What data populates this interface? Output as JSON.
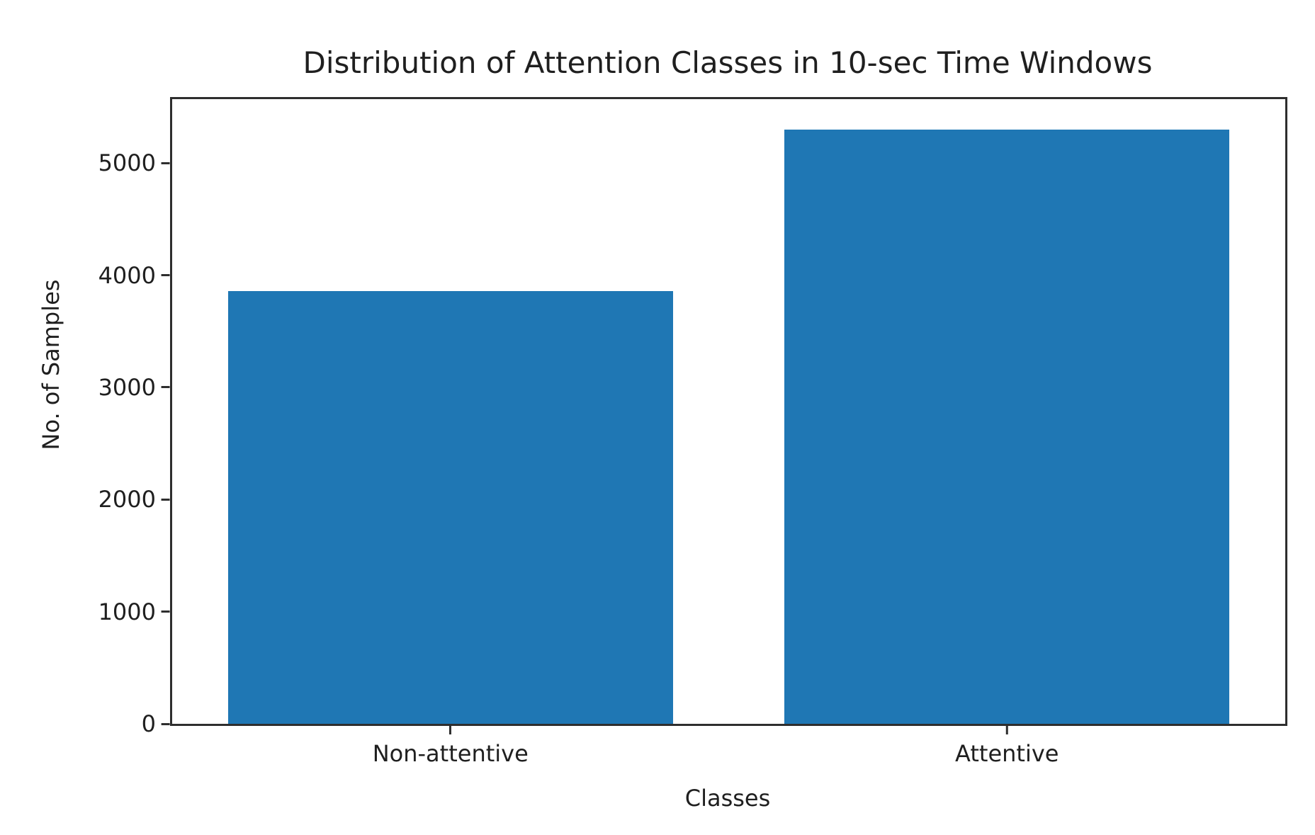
{
  "figure": {
    "background_color": "#ffffff",
    "text_color": "#1f1f1f",
    "spine_color": "#2e2e2e"
  },
  "chart_data": {
    "type": "bar",
    "title": "Distribution of Attention Classes in 10-sec Time Windows",
    "xlabel": "Classes",
    "ylabel": "No. of Samples",
    "categories": [
      "Non-attentive",
      "Attentive"
    ],
    "values": [
      3860,
      5300
    ],
    "yticks": [
      0,
      1000,
      2000,
      3000,
      4000,
      5000
    ],
    "ylim": [
      0,
      5570
    ],
    "bar_color": "#1f77b4",
    "bar_width_fraction": 0.8,
    "grid": false,
    "legend": "none"
  }
}
